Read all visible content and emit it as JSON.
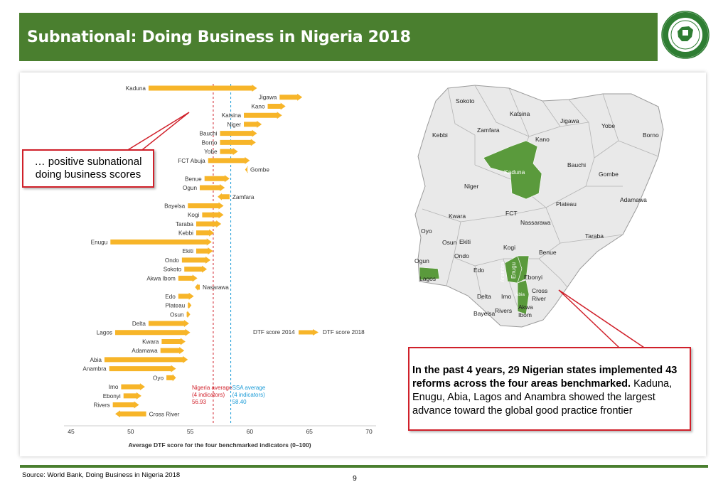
{
  "header": {
    "title": "Subnational: Doing Business in Nigeria 2018"
  },
  "logo": {
    "ring_text": "NIGERIAN INVESTMENT PROMOTION COMMISSION",
    "colors": {
      "ring": "#2e7d32",
      "center": "#ffffff"
    }
  },
  "callouts": {
    "left": [
      "… positive subnational",
      "doing business scores"
    ],
    "right_bold": "In the past 4 years, 29 Nigerian states implemented 43 reforms across the four areas benchmarked.",
    "right_text": "Kaduna, Enugu, Abia, Lagos and Anambra showed the largest advance toward the global good practice frontier"
  },
  "chart_data": {
    "type": "bar",
    "subtype": "arrow-range",
    "xlabel": "Average DTF score for the four benchmarked indicators (0–100)",
    "xlim": [
      45,
      70
    ],
    "xticks": [
      45,
      50,
      55,
      60,
      65,
      70
    ],
    "legend": {
      "from_label": "DTF score 2014",
      "to_label": "DTF score 2018"
    },
    "reference_lines": [
      {
        "label_lines": [
          "Nigeria average",
          "(4 indicators)",
          "56.93"
        ],
        "value": 56.93,
        "color": "#d0202a"
      },
      {
        "label_lines": [
          "SSA average",
          "(4 indicators)",
          "58.40"
        ],
        "value": 58.4,
        "color": "#1a9bd7"
      }
    ],
    "colors": {
      "arrow": "#f7b529"
    },
    "states": [
      {
        "name": "Kaduna",
        "from": 51.5,
        "to": 60.6
      },
      {
        "name": "Jigawa",
        "from": 62.5,
        "to": 64.4
      },
      {
        "name": "Kano",
        "from": 61.5,
        "to": 63.0
      },
      {
        "name": "Katsina",
        "from": 59.5,
        "to": 62.7
      },
      {
        "name": "Niger",
        "from": 59.5,
        "to": 61.0
      },
      {
        "name": "Bauchi",
        "from": 57.5,
        "to": 60.6
      },
      {
        "name": "Borno",
        "from": 57.5,
        "to": 60.5
      },
      {
        "name": "Yobe",
        "from": 57.5,
        "to": 59.0
      },
      {
        "name": "FCT Abuja",
        "from": 56.5,
        "to": 60.0
      },
      {
        "name": "Gombe",
        "from": 59.8,
        "to": 59.6
      },
      {
        "name": "Benue",
        "from": 56.2,
        "to": 58.3
      },
      {
        "name": "Ogun",
        "from": 55.8,
        "to": 57.9
      },
      {
        "name": "Zamfara",
        "from": 58.3,
        "to": 57.3
      },
      {
        "name": "Bayelsa",
        "from": 54.8,
        "to": 57.8
      },
      {
        "name": "Kogi",
        "from": 56.0,
        "to": 57.8
      },
      {
        "name": "Taraba",
        "from": 55.5,
        "to": 57.6
      },
      {
        "name": "Kebbi",
        "from": 55.5,
        "to": 57.0
      },
      {
        "name": "Enugu",
        "from": 48.3,
        "to": 56.8
      },
      {
        "name": "Ekiti",
        "from": 55.5,
        "to": 56.9
      },
      {
        "name": "Ondo",
        "from": 54.3,
        "to": 56.7
      },
      {
        "name": "Sokoto",
        "from": 54.5,
        "to": 56.4
      },
      {
        "name": "Akwa Ibom",
        "from": 54.0,
        "to": 55.6
      },
      {
        "name": "Nasarawa",
        "from": 55.8,
        "to": 55.4
      },
      {
        "name": "Edo",
        "from": 54.0,
        "to": 55.3
      },
      {
        "name": "Plateau",
        "from": 54.8,
        "to": 55.1
      },
      {
        "name": "Osun",
        "from": 54.7,
        "to": 55.0
      },
      {
        "name": "Delta",
        "from": 51.5,
        "to": 54.9
      },
      {
        "name": "Lagos",
        "from": 48.7,
        "to": 55.0
      },
      {
        "name": "Kwara",
        "from": 52.6,
        "to": 54.6
      },
      {
        "name": "Adamawa",
        "from": 52.5,
        "to": 54.5
      },
      {
        "name": "Abia",
        "from": 47.8,
        "to": 54.8
      },
      {
        "name": "Anambra",
        "from": 48.2,
        "to": 53.8
      },
      {
        "name": "Oyo",
        "from": 53.0,
        "to": 53.8
      },
      {
        "name": "Imo",
        "from": 49.2,
        "to": 51.2
      },
      {
        "name": "Ebonyi",
        "from": 49.4,
        "to": 50.9
      },
      {
        "name": "Rivers",
        "from": 48.5,
        "to": 50.7
      },
      {
        "name": "Cross River",
        "from": 51.3,
        "to": 48.7
      }
    ]
  },
  "map": {
    "highlight_color": "#5a9a3c",
    "labels": [
      "Sokoto",
      "Katsina",
      "Jigawa",
      "Yobe",
      "Zamfara",
      "Kebbi",
      "Kano",
      "Borno",
      "Bauchi",
      "Kaduna",
      "Gombe",
      "Niger",
      "Adamawa",
      "Plateau",
      "FCT",
      "Kwara",
      "Nassarawa",
      "Oyo",
      "Taraba",
      "Osun",
      "Ekiti",
      "Kogi",
      "Benue",
      "Ondo",
      "Ogun",
      "Edo",
      "Anambra",
      "Enugu",
      "Lagos",
      "Ebonyi",
      "Cross River",
      "Abia",
      "Delta",
      "Imo",
      "Akwa Ibom",
      "Rivers",
      "Bayelsa"
    ]
  },
  "footer": {
    "source": "Source: World Bank, Doing Business in Nigeria 2018",
    "page": "9"
  }
}
